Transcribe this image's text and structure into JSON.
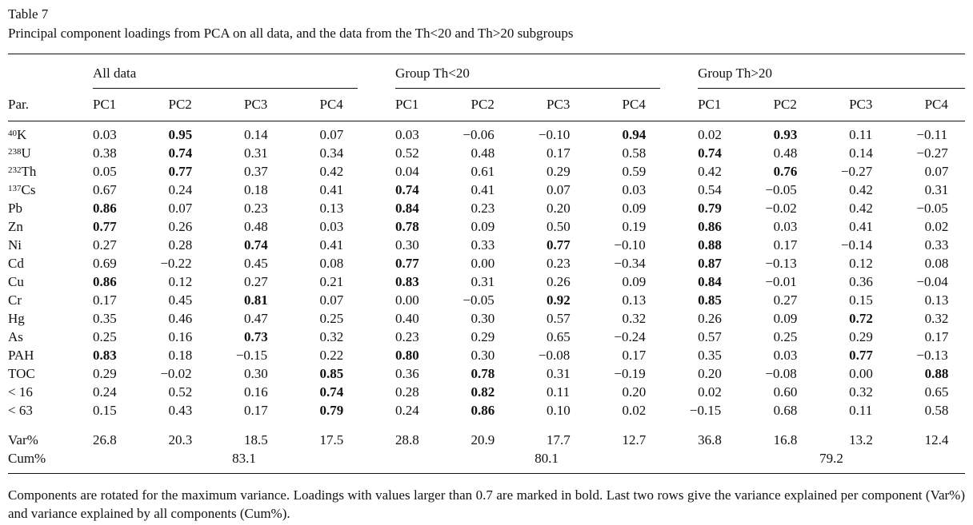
{
  "doc": {
    "title": "Table 7",
    "caption": "Principal component loadings from PCA on all data, and the data from the Th<20 and Th>20 subgroups",
    "footnote": "Components are rotated for the maximum variance. Loadings with values larger than 0.7 are marked in bold. Last two rows give the variance explained per component (Var%) and variance explained by all components (Cum%)."
  },
  "table": {
    "par_header": "Par.",
    "pc_headers": [
      "PC1",
      "PC2",
      "PC3",
      "PC4"
    ],
    "groups": [
      {
        "label": "All data"
      },
      {
        "label": "Group Th<20"
      },
      {
        "label": "Group Th>20"
      }
    ],
    "rows": [
      {
        "sup": "40",
        "label": "K",
        "values": [
          "0.03",
          "0.95",
          "0.14",
          "0.07",
          "0.03",
          "−0.06",
          "−0.10",
          "0.94",
          "0.02",
          "0.93",
          "0.11",
          "−0.11"
        ],
        "bold": [
          0,
          1,
          0,
          0,
          0,
          0,
          0,
          1,
          0,
          1,
          0,
          0
        ]
      },
      {
        "sup": "238",
        "label": "U",
        "values": [
          "0.38",
          "0.74",
          "0.31",
          "0.34",
          "0.52",
          "0.48",
          "0.17",
          "0.58",
          "0.74",
          "0.48",
          "0.14",
          "−0.27"
        ],
        "bold": [
          0,
          1,
          0,
          0,
          0,
          0,
          0,
          0,
          1,
          0,
          0,
          0
        ]
      },
      {
        "sup": "232",
        "label": "Th",
        "values": [
          "0.05",
          "0.77",
          "0.37",
          "0.42",
          "0.04",
          "0.61",
          "0.29",
          "0.59",
          "0.42",
          "0.76",
          "−0.27",
          "0.07"
        ],
        "bold": [
          0,
          1,
          0,
          0,
          0,
          0,
          0,
          0,
          0,
          1,
          0,
          0
        ]
      },
      {
        "sup": "137",
        "label": "Cs",
        "values": [
          "0.67",
          "0.24",
          "0.18",
          "0.41",
          "0.74",
          "0.41",
          "0.07",
          "0.03",
          "0.54",
          "−0.05",
          "0.42",
          "0.31"
        ],
        "bold": [
          0,
          0,
          0,
          0,
          1,
          0,
          0,
          0,
          0,
          0,
          0,
          0
        ]
      },
      {
        "sup": "",
        "label": "Pb",
        "values": [
          "0.86",
          "0.07",
          "0.23",
          "0.13",
          "0.84",
          "0.23",
          "0.20",
          "0.09",
          "0.79",
          "−0.02",
          "0.42",
          "−0.05"
        ],
        "bold": [
          1,
          0,
          0,
          0,
          1,
          0,
          0,
          0,
          1,
          0,
          0,
          0
        ]
      },
      {
        "sup": "",
        "label": "Zn",
        "values": [
          "0.77",
          "0.26",
          "0.48",
          "0.03",
          "0.78",
          "0.09",
          "0.50",
          "0.19",
          "0.86",
          "0.03",
          "0.41",
          "0.02"
        ],
        "bold": [
          1,
          0,
          0,
          0,
          1,
          0,
          0,
          0,
          1,
          0,
          0,
          0
        ]
      },
      {
        "sup": "",
        "label": "Ni",
        "values": [
          "0.27",
          "0.28",
          "0.74",
          "0.41",
          "0.30",
          "0.33",
          "0.77",
          "−0.10",
          "0.88",
          "0.17",
          "−0.14",
          "0.33"
        ],
        "bold": [
          0,
          0,
          1,
          0,
          0,
          0,
          1,
          0,
          1,
          0,
          0,
          0
        ]
      },
      {
        "sup": "",
        "label": "Cd",
        "values": [
          "0.69",
          "−0.22",
          "0.45",
          "0.08",
          "0.77",
          "0.00",
          "0.23",
          "−0.34",
          "0.87",
          "−0.13",
          "0.12",
          "0.08"
        ],
        "bold": [
          0,
          0,
          0,
          0,
          1,
          0,
          0,
          0,
          1,
          0,
          0,
          0
        ]
      },
      {
        "sup": "",
        "label": "Cu",
        "values": [
          "0.86",
          "0.12",
          "0.27",
          "0.21",
          "0.83",
          "0.31",
          "0.26",
          "0.09",
          "0.84",
          "−0.01",
          "0.36",
          "−0.04"
        ],
        "bold": [
          1,
          0,
          0,
          0,
          1,
          0,
          0,
          0,
          1,
          0,
          0,
          0
        ]
      },
      {
        "sup": "",
        "label": "Cr",
        "values": [
          "0.17",
          "0.45",
          "0.81",
          "0.07",
          "0.00",
          "−0.05",
          "0.92",
          "0.13",
          "0.85",
          "0.27",
          "0.15",
          "0.13"
        ],
        "bold": [
          0,
          0,
          1,
          0,
          0,
          0,
          1,
          0,
          1,
          0,
          0,
          0
        ]
      },
      {
        "sup": "",
        "label": "Hg",
        "values": [
          "0.35",
          "0.46",
          "0.47",
          "0.25",
          "0.40",
          "0.30",
          "0.57",
          "0.32",
          "0.26",
          "0.09",
          "0.72",
          "0.32"
        ],
        "bold": [
          0,
          0,
          0,
          0,
          0,
          0,
          0,
          0,
          0,
          0,
          1,
          0
        ]
      },
      {
        "sup": "",
        "label": "As",
        "values": [
          "0.25",
          "0.16",
          "0.73",
          "0.32",
          "0.23",
          "0.29",
          "0.65",
          "−0.24",
          "0.57",
          "0.25",
          "0.29",
          "0.17"
        ],
        "bold": [
          0,
          0,
          1,
          0,
          0,
          0,
          0,
          0,
          0,
          0,
          0,
          0
        ]
      },
      {
        "sup": "",
        "label": "PAH",
        "values": [
          "0.83",
          "0.18",
          "−0.15",
          "0.22",
          "0.80",
          "0.30",
          "−0.08",
          "0.17",
          "0.35",
          "0.03",
          "0.77",
          "−0.13"
        ],
        "bold": [
          1,
          0,
          0,
          0,
          1,
          0,
          0,
          0,
          0,
          0,
          1,
          0
        ]
      },
      {
        "sup": "",
        "label": "TOC",
        "values": [
          "0.29",
          "−0.02",
          "0.30",
          "0.85",
          "0.36",
          "0.78",
          "0.31",
          "−0.19",
          "0.20",
          "−0.08",
          "0.00",
          "0.88"
        ],
        "bold": [
          0,
          0,
          0,
          1,
          0,
          1,
          0,
          0,
          0,
          0,
          0,
          1
        ]
      },
      {
        "sup": "",
        "label": "< 16",
        "values": [
          "0.24",
          "0.52",
          "0.16",
          "0.74",
          "0.28",
          "0.82",
          "0.11",
          "0.20",
          "0.02",
          "0.60",
          "0.32",
          "0.65"
        ],
        "bold": [
          0,
          0,
          0,
          1,
          0,
          1,
          0,
          0,
          0,
          0,
          0,
          0
        ]
      },
      {
        "sup": "",
        "label": "< 63",
        "values": [
          "0.15",
          "0.43",
          "0.17",
          "0.79",
          "0.24",
          "0.86",
          "0.10",
          "0.02",
          "−0.15",
          "0.68",
          "0.11",
          "0.58"
        ],
        "bold": [
          0,
          0,
          0,
          1,
          0,
          1,
          0,
          0,
          0,
          0,
          0,
          0
        ]
      }
    ],
    "var_row": {
      "label": "Var%",
      "values": [
        "26.8",
        "20.3",
        "18.5",
        "17.5",
        "28.8",
        "20.9",
        "17.7",
        "12.7",
        "36.8",
        "16.8",
        "13.2",
        "12.4"
      ]
    },
    "cum_row": {
      "label": "Cum%",
      "values": [
        "83.1",
        "80.1",
        "79.2"
      ]
    }
  },
  "colors": {
    "text": "#111111",
    "background": "#ffffff"
  }
}
